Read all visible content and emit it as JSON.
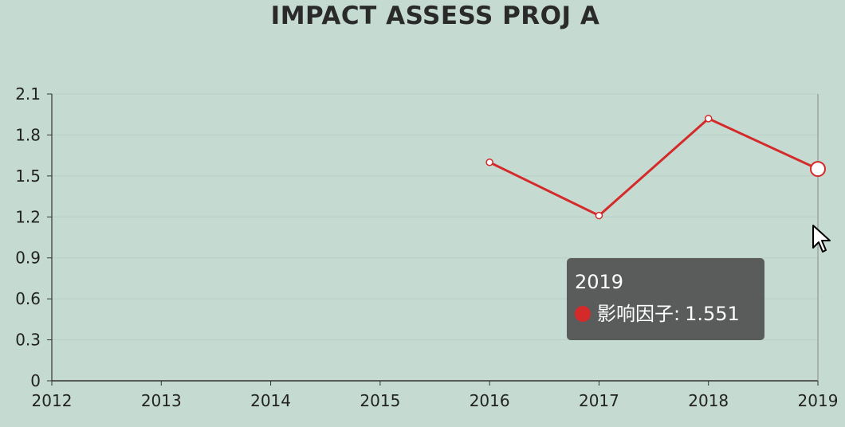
{
  "chart_data": {
    "type": "line",
    "title": "IMPACT ASSESS PROJ A",
    "x": [
      "2012",
      "2013",
      "2014",
      "2015",
      "2016",
      "2017",
      "2018",
      "2019"
    ],
    "series": [
      {
        "name": "影响因子",
        "values": [
          null,
          null,
          null,
          null,
          1.6,
          1.21,
          1.92,
          1.551
        ]
      }
    ],
    "ylim": [
      0,
      2.1
    ],
    "yticks": [
      "0",
      "0.3",
      "0.6",
      "0.9",
      "1.2",
      "1.5",
      "1.8",
      "2.1"
    ],
    "grid": true,
    "legend": "none"
  },
  "tooltip": {
    "title": "2019",
    "series_name": "影响因子",
    "separator": ":",
    "value": "1.551"
  },
  "colors": {
    "line": "#d42a2a",
    "background": "#c5dbd2",
    "tooltip_bg": "#505050"
  },
  "highlight_index": 7,
  "cursor_icon": "pointer-arrow-icon"
}
